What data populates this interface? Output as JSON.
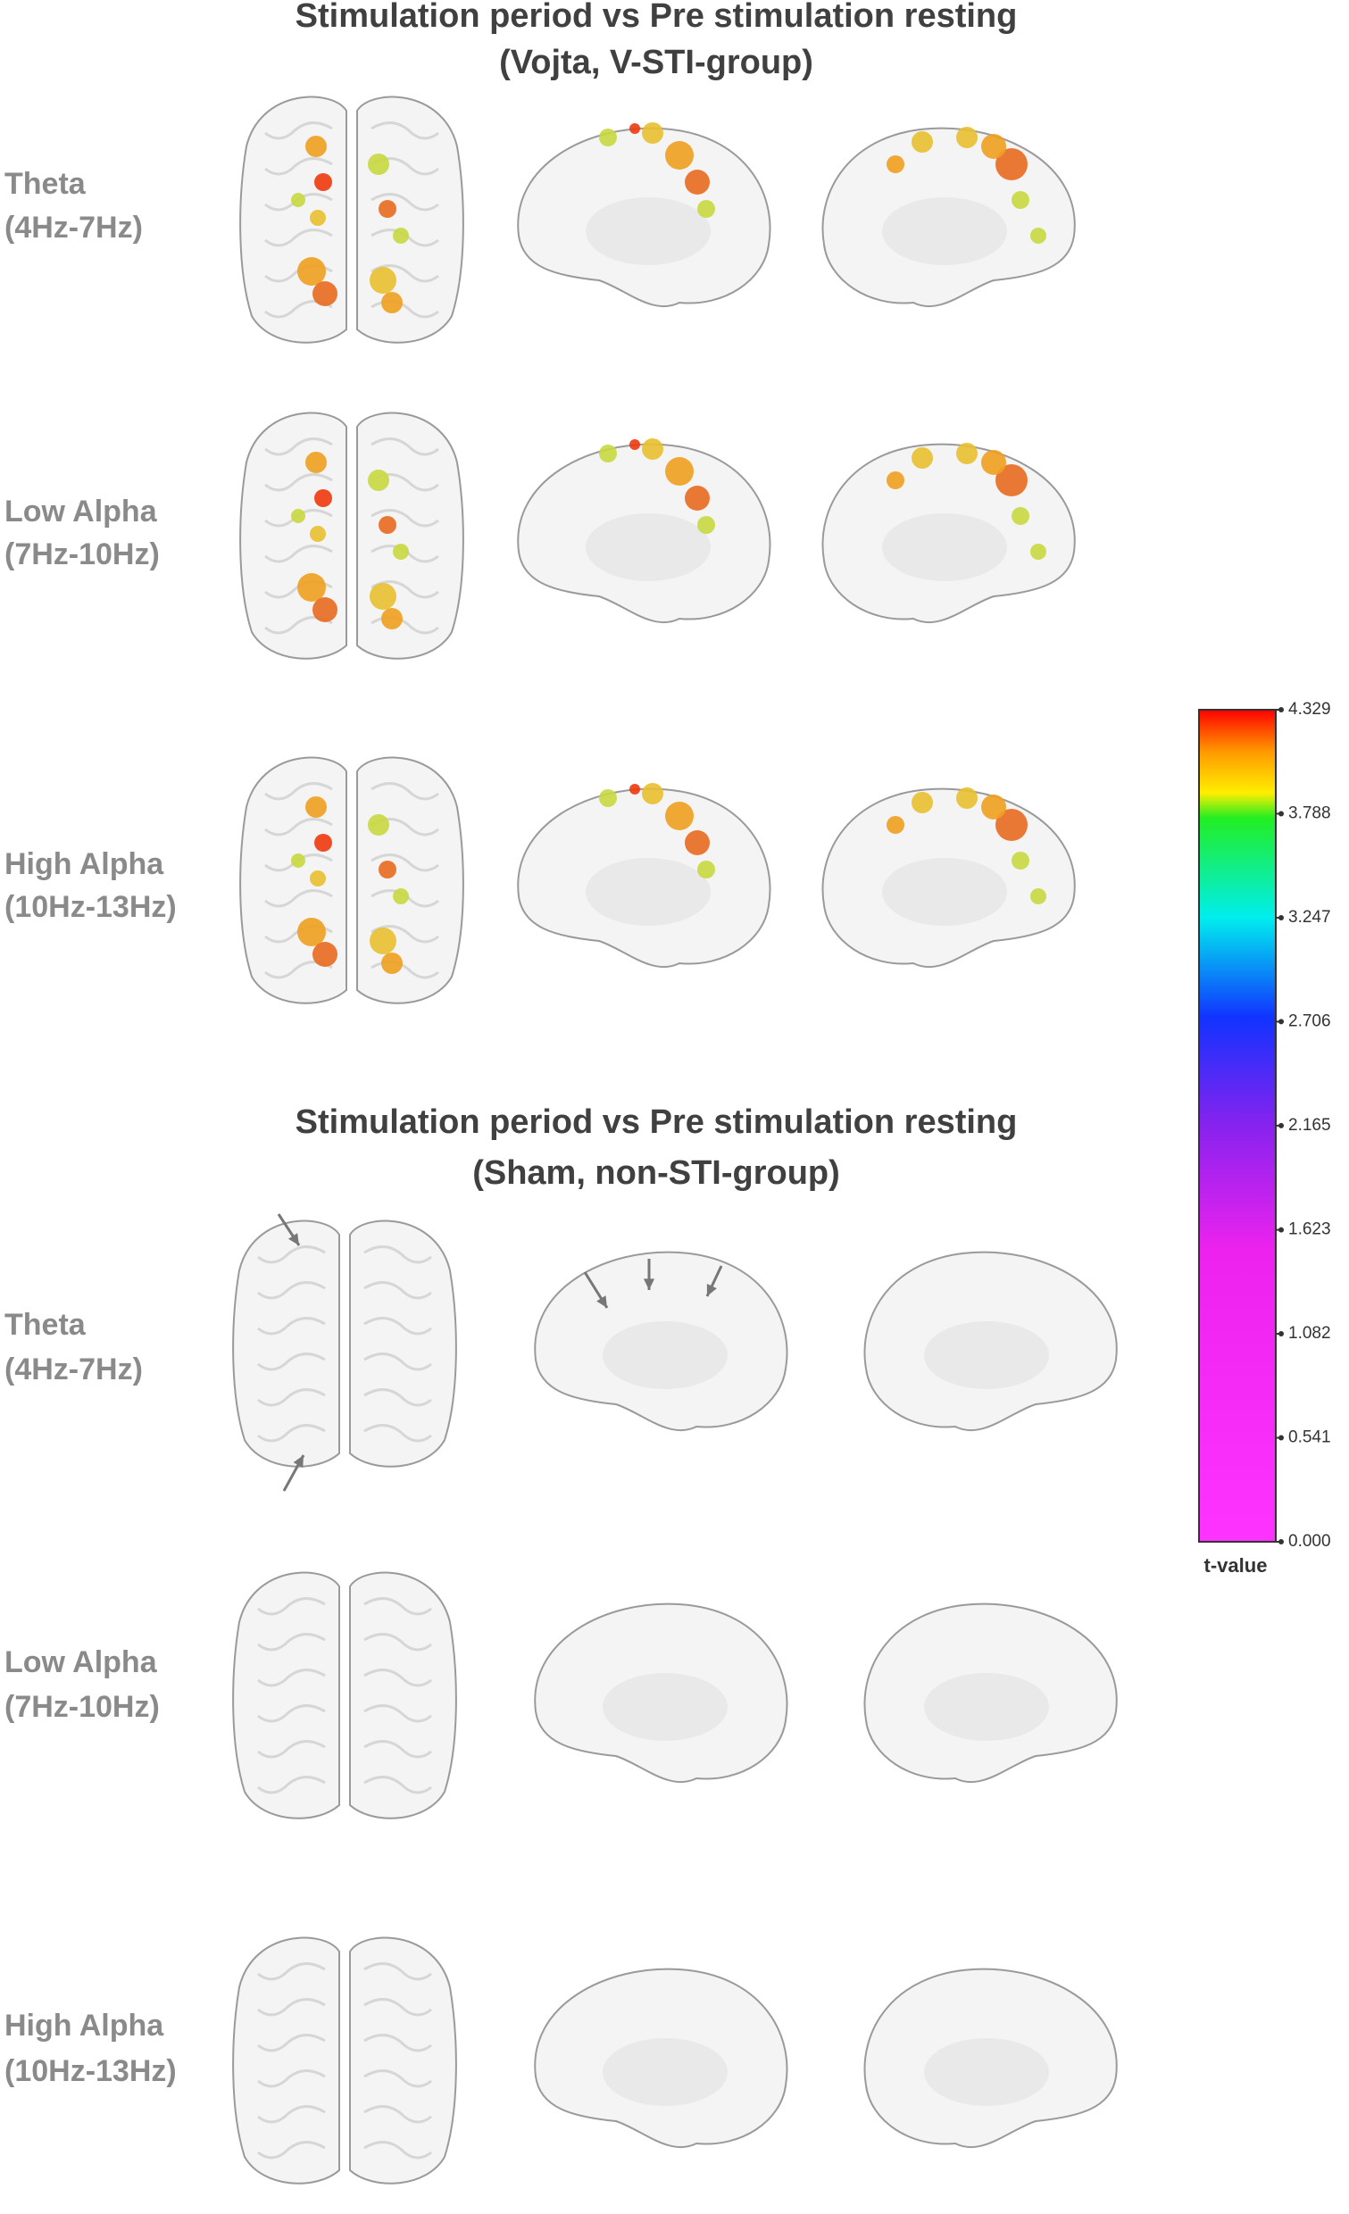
{
  "sections": [
    {
      "title": [
        "Stimulation period vs Pre stimulation resting",
        "(Vojta, V-STI-group)"
      ],
      "rows": [
        {
          "label": [
            "Theta",
            "(4Hz-7Hz)"
          ]
        },
        {
          "label": [
            "Low Alpha",
            "(7Hz-10Hz)"
          ]
        },
        {
          "label": [
            "High Alpha",
            "(10Hz-13Hz)"
          ]
        }
      ]
    },
    {
      "title": [
        "Stimulation period vs Pre stimulation resting",
        "(Sham, non-STI-group)"
      ],
      "rows": [
        {
          "label": [
            "Theta",
            "(4Hz-7Hz)"
          ]
        },
        {
          "label": [
            "Low Alpha",
            "(7Hz-10Hz)"
          ]
        },
        {
          "label": [
            "High Alpha",
            "(10Hz-13Hz)"
          ]
        }
      ]
    }
  ],
  "colorbar": {
    "label": "t-value",
    "lim": [
      0,
      4.329
    ],
    "ticks": [
      {
        "value": 4.329,
        "label": "4.329"
      },
      {
        "value": 3.788,
        "label": "3.788"
      },
      {
        "value": 3.247,
        "label": "3.247"
      },
      {
        "value": 2.706,
        "label": "2.706"
      },
      {
        "value": 2.165,
        "label": "2.165"
      },
      {
        "value": 1.623,
        "label": "1.623"
      },
      {
        "value": 1.082,
        "label": "1.082"
      },
      {
        "value": 0.541,
        "label": "0.541"
      },
      {
        "value": 0,
        "label": "0.000"
      }
    ]
  }
}
